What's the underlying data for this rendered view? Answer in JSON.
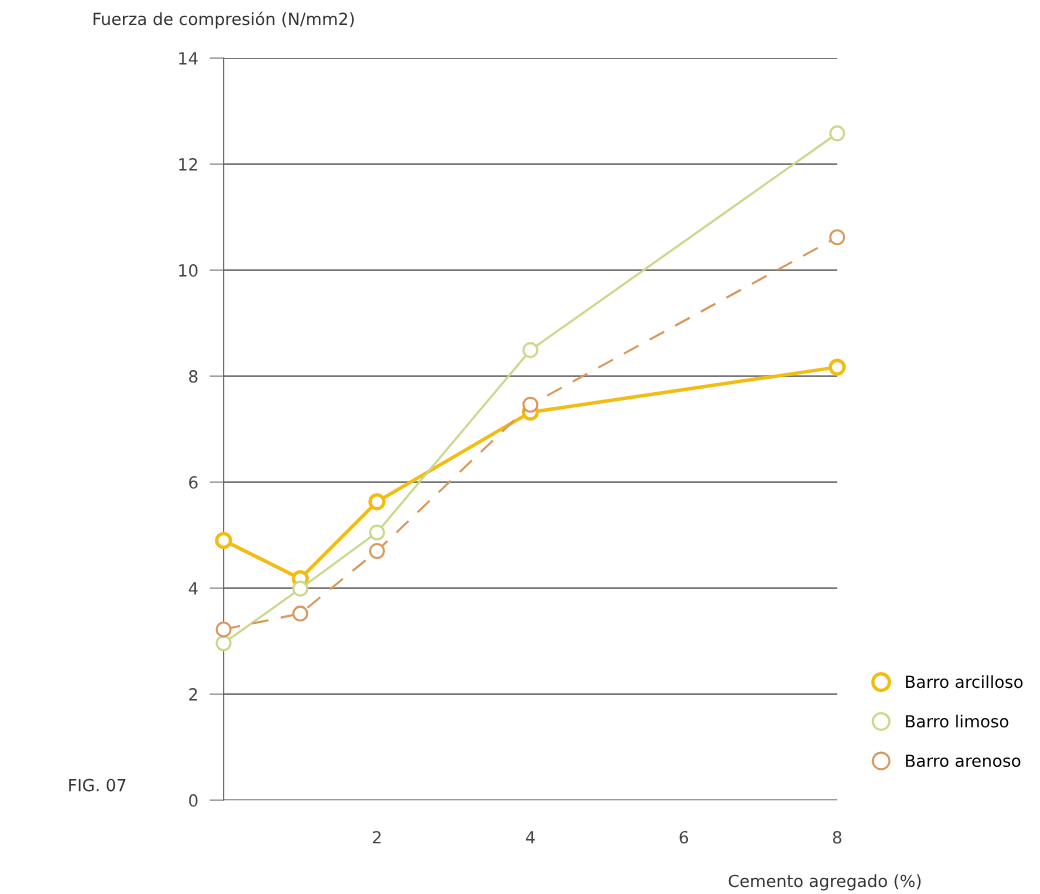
{
  "chart_data": {
    "type": "line",
    "ylabel": "Fuerza de compresión (N/mm2)",
    "xlabel": "Cemento agregado (%)",
    "x": [
      0,
      1,
      2,
      4,
      8
    ],
    "series": [
      {
        "name": "Barro arcilloso",
        "color": "#f2bc12",
        "line_style": "solid",
        "values": [
          4.9,
          4.18,
          5.63,
          7.32,
          8.17
        ]
      },
      {
        "name": "Barro limoso",
        "color": "#c9d98c",
        "line_style": "solid",
        "values": [
          2.96,
          3.99,
          5.05,
          8.49,
          12.58
        ]
      },
      {
        "name": "Barro arenoso",
        "color": "#d9975a",
        "line_style": "dashed",
        "values": [
          3.22,
          3.52,
          4.7,
          7.46,
          10.62
        ]
      }
    ],
    "xlim": [
      0,
      8
    ],
    "xticks": [
      2,
      4,
      6,
      8
    ],
    "ylim": [
      0,
      14
    ],
    "yticks": [
      0,
      2,
      4,
      6,
      8,
      10,
      12,
      14
    ],
    "grid": "y",
    "legend": "bottom right",
    "marker": "circle",
    "annotations": [
      "FIG. 07"
    ]
  }
}
